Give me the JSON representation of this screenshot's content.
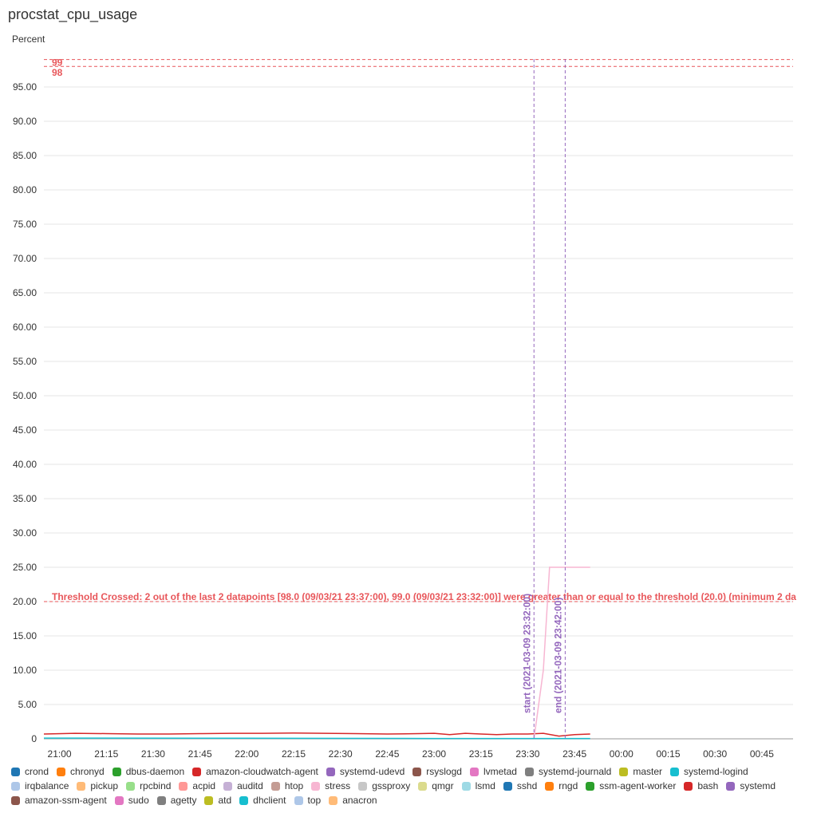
{
  "title": "procstat_cpu_usage",
  "chart_data": {
    "type": "line",
    "ylabel": "Percent",
    "ylim": [
      0,
      99
    ],
    "yticks": [
      "0",
      "5.00",
      "10.00",
      "15.00",
      "20.00",
      "25.00",
      "30.00",
      "35.00",
      "40.00",
      "45.00",
      "50.00",
      "55.00",
      "60.00",
      "65.00",
      "70.00",
      "75.00",
      "80.00",
      "85.00",
      "90.00",
      "95.00"
    ],
    "xlim": [
      "20:55",
      "00:55"
    ],
    "xticks": [
      "21:00",
      "21:15",
      "21:30",
      "21:45",
      "22:00",
      "22:15",
      "22:30",
      "22:45",
      "23:00",
      "23:15",
      "23:30",
      "23:45",
      "00:00",
      "00:15",
      "00:30",
      "00:45"
    ],
    "grid": true,
    "horizontal_lines": [
      {
        "y": 99,
        "label": "99",
        "color": "#e8565a"
      },
      {
        "y": 98,
        "label": "98",
        "color": "#e8565a"
      },
      {
        "y": 20,
        "label": "Threshold Crossed: 2 out of the last 2 datapoints [98.0 (09/03/21 23:37:00), 99.0 (09/03/21 23:32:00)] were greater than or equal to the threshold (20.0) (minimum 2 da",
        "color": "#e8565a"
      }
    ],
    "vertical_lines": [
      {
        "x": "23:32",
        "label": "start (2021-03-09 23:32:00)",
        "color": "#9467bd"
      },
      {
        "x": "23:42",
        "label": "end (2021-03-09 23:42:00)",
        "color": "#9467bd"
      }
    ],
    "series": [
      {
        "name": "amazon-cloudwatch-agent",
        "color": "#d62728",
        "x": [
          "20:55",
          "21:05",
          "21:15",
          "21:25",
          "21:35",
          "21:45",
          "21:55",
          "22:05",
          "22:15",
          "22:25",
          "22:35",
          "22:45",
          "22:55",
          "23:00",
          "23:05",
          "23:10",
          "23:15",
          "23:20",
          "23:25",
          "23:30",
          "23:35",
          "23:40",
          "23:45",
          "23:50"
        ],
        "values": [
          0.7,
          0.8,
          0.75,
          0.7,
          0.7,
          0.75,
          0.8,
          0.8,
          0.85,
          0.8,
          0.75,
          0.7,
          0.75,
          0.8,
          0.6,
          0.8,
          0.7,
          0.6,
          0.7,
          0.7,
          0.8,
          0.4,
          0.6,
          0.7
        ]
      },
      {
        "name": "stress",
        "color": "#f7b6d2",
        "x": [
          "23:32",
          "23:35",
          "23:37",
          "23:42",
          "23:50"
        ],
        "values": [
          0,
          10,
          25,
          25,
          25
        ]
      },
      {
        "name": "systemd-logind",
        "color": "#17becf",
        "x": [
          "20:55",
          "22:00",
          "23:00",
          "23:50"
        ],
        "values": [
          0.1,
          0.08,
          0.05,
          0.05
        ]
      }
    ]
  },
  "legend": [
    {
      "label": "crond",
      "color": "#1f77b4"
    },
    {
      "label": "chronyd",
      "color": "#ff7f0e"
    },
    {
      "label": "dbus-daemon",
      "color": "#2ca02c"
    },
    {
      "label": "amazon-cloudwatch-agent",
      "color": "#d62728"
    },
    {
      "label": "systemd-udevd",
      "color": "#9467bd"
    },
    {
      "label": "rsyslogd",
      "color": "#8c564b"
    },
    {
      "label": "lvmetad",
      "color": "#e377c2"
    },
    {
      "label": "systemd-journald",
      "color": "#7f7f7f"
    },
    {
      "label": "master",
      "color": "#bcbd22"
    },
    {
      "label": "systemd-logind",
      "color": "#17becf"
    },
    {
      "label": "irqbalance",
      "color": "#aec7e8"
    },
    {
      "label": "pickup",
      "color": "#ffbb78"
    },
    {
      "label": "rpcbind",
      "color": "#98df8a"
    },
    {
      "label": "acpid",
      "color": "#ff9896"
    },
    {
      "label": "auditd",
      "color": "#c5b0d5"
    },
    {
      "label": "htop",
      "color": "#c49c94"
    },
    {
      "label": "stress",
      "color": "#f7b6d2"
    },
    {
      "label": "gssproxy",
      "color": "#c7c7c7"
    },
    {
      "label": "qmgr",
      "color": "#dbdb8d"
    },
    {
      "label": "lsmd",
      "color": "#9edae5"
    },
    {
      "label": "sshd",
      "color": "#1f77b4"
    },
    {
      "label": "rngd",
      "color": "#ff7f0e"
    },
    {
      "label": "ssm-agent-worker",
      "color": "#2ca02c"
    },
    {
      "label": "bash",
      "color": "#d62728"
    },
    {
      "label": "systemd",
      "color": "#9467bd"
    },
    {
      "label": "amazon-ssm-agent",
      "color": "#8c564b"
    },
    {
      "label": "sudo",
      "color": "#e377c2"
    },
    {
      "label": "agetty",
      "color": "#7f7f7f"
    },
    {
      "label": "atd",
      "color": "#bcbd22"
    },
    {
      "label": "dhclient",
      "color": "#17becf"
    },
    {
      "label": "top",
      "color": "#aec7e8"
    },
    {
      "label": "anacron",
      "color": "#ffbb78"
    }
  ]
}
